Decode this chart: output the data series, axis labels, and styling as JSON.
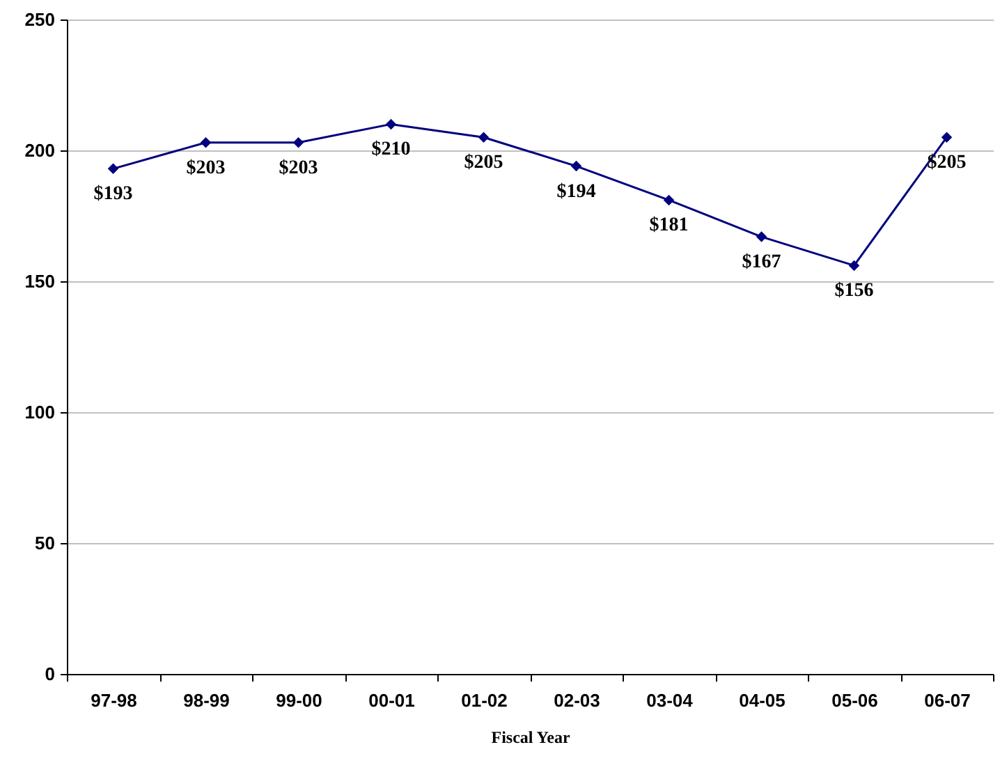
{
  "chart_data": {
    "type": "line",
    "xlabel": "Fiscal Year",
    "categories": [
      "97-98",
      "98-99",
      "99-00",
      "00-01",
      "01-02",
      "02-03",
      "03-04",
      "04-05",
      "05-06",
      "06-07"
    ],
    "series": [
      {
        "color": "#000080",
        "values": [
          193,
          203,
          203,
          210,
          205,
          194,
          181,
          167,
          156,
          205
        ],
        "value_labels": [
          "$193",
          "$203",
          "$203",
          "$210",
          "$205",
          "$194",
          "$181",
          "$167",
          "$156",
          "$205"
        ]
      }
    ],
    "ylim": [
      0,
      250
    ],
    "yticks": [
      0,
      50,
      100,
      150,
      200,
      250
    ],
    "grid": "y",
    "marker": "diamond"
  }
}
